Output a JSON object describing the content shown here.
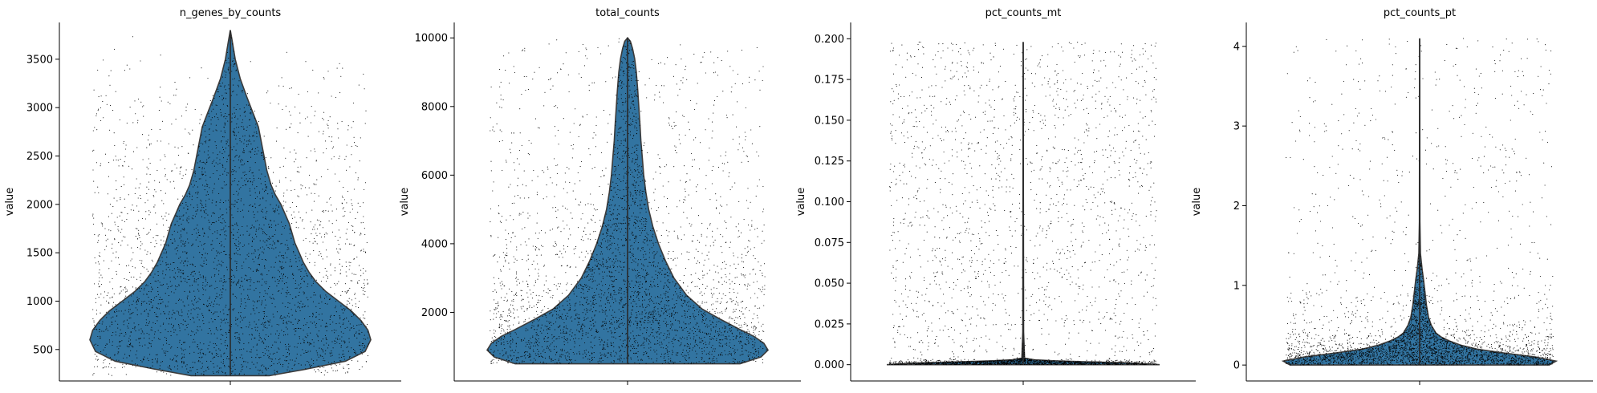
{
  "chart_data": [
    {
      "type": "violin",
      "title": "n_genes_by_counts",
      "xlabel": "",
      "ylabel": "value",
      "ylim": [
        175,
        3880
      ],
      "yticks": [
        500,
        1000,
        1500,
        2000,
        2500,
        3000,
        3500
      ],
      "ytick_labels": [
        "500",
        "1000",
        "1500",
        "2000",
        "2500",
        "3000",
        "3500"
      ],
      "data_min": 230,
      "data_max": 3800,
      "violin_color": "#3274a1",
      "density": [
        {
          "y": 230,
          "w": 0.28
        },
        {
          "y": 300,
          "w": 0.55
        },
        {
          "y": 380,
          "w": 0.82
        },
        {
          "y": 480,
          "w": 0.96
        },
        {
          "y": 600,
          "w": 1.0
        },
        {
          "y": 700,
          "w": 0.98
        },
        {
          "y": 800,
          "w": 0.93
        },
        {
          "y": 900,
          "w": 0.86
        },
        {
          "y": 1000,
          "w": 0.77
        },
        {
          "y": 1100,
          "w": 0.68
        },
        {
          "y": 1200,
          "w": 0.61
        },
        {
          "y": 1300,
          "w": 0.56
        },
        {
          "y": 1400,
          "w": 0.52
        },
        {
          "y": 1500,
          "w": 0.49
        },
        {
          "y": 1600,
          "w": 0.46
        },
        {
          "y": 1700,
          "w": 0.44
        },
        {
          "y": 1800,
          "w": 0.42
        },
        {
          "y": 1900,
          "w": 0.39
        },
        {
          "y": 2000,
          "w": 0.36
        },
        {
          "y": 2100,
          "w": 0.32
        },
        {
          "y": 2200,
          "w": 0.29
        },
        {
          "y": 2350,
          "w": 0.26
        },
        {
          "y": 2500,
          "w": 0.24
        },
        {
          "y": 2650,
          "w": 0.22
        },
        {
          "y": 2800,
          "w": 0.2
        },
        {
          "y": 2950,
          "w": 0.16
        },
        {
          "y": 3100,
          "w": 0.12
        },
        {
          "y": 3300,
          "w": 0.07
        },
        {
          "y": 3500,
          "w": 0.035
        },
        {
          "y": 3700,
          "w": 0.012
        },
        {
          "y": 3800,
          "w": 0.0
        }
      ]
    },
    {
      "type": "violin",
      "title": "total_counts",
      "xlabel": "",
      "ylabel": "value",
      "ylim": [
        0,
        10450
      ],
      "yticks": [
        2000,
        4000,
        6000,
        8000,
        10000
      ],
      "ytick_labels": [
        "2000",
        "4000",
        "6000",
        "8000",
        "10000"
      ],
      "data_min": 500,
      "data_max": 10000,
      "violin_color": "#3274a1",
      "density": [
        {
          "y": 500,
          "w": 0.8
        },
        {
          "y": 700,
          "w": 0.95
        },
        {
          "y": 900,
          "w": 1.0
        },
        {
          "y": 1100,
          "w": 0.97
        },
        {
          "y": 1300,
          "w": 0.9
        },
        {
          "y": 1500,
          "w": 0.8
        },
        {
          "y": 1800,
          "w": 0.66
        },
        {
          "y": 2100,
          "w": 0.53
        },
        {
          "y": 2500,
          "w": 0.42
        },
        {
          "y": 3000,
          "w": 0.33
        },
        {
          "y": 3500,
          "w": 0.27
        },
        {
          "y": 4000,
          "w": 0.22
        },
        {
          "y": 4500,
          "w": 0.18
        },
        {
          "y": 5000,
          "w": 0.15
        },
        {
          "y": 5500,
          "w": 0.13
        },
        {
          "y": 6000,
          "w": 0.115
        },
        {
          "y": 6500,
          "w": 0.105
        },
        {
          "y": 7000,
          "w": 0.095
        },
        {
          "y": 7500,
          "w": 0.088
        },
        {
          "y": 8000,
          "w": 0.08
        },
        {
          "y": 8500,
          "w": 0.072
        },
        {
          "y": 9000,
          "w": 0.062
        },
        {
          "y": 9400,
          "w": 0.05
        },
        {
          "y": 9700,
          "w": 0.035
        },
        {
          "y": 9900,
          "w": 0.02
        },
        {
          "y": 10000,
          "w": 0.0
        }
      ]
    },
    {
      "type": "violin",
      "title": "pct_counts_mt",
      "xlabel": "",
      "ylabel": "value",
      "ylim": [
        -0.01,
        0.21
      ],
      "yticks": [
        0.0,
        0.025,
        0.05,
        0.075,
        0.1,
        0.125,
        0.15,
        0.175,
        0.2
      ],
      "ytick_labels": [
        "0.000",
        "0.025",
        "0.050",
        "0.075",
        "0.100",
        "0.125",
        "0.150",
        "0.175",
        "0.200"
      ],
      "data_min": 0.0,
      "data_max": 0.198,
      "violin_color": "#3274a1",
      "density": [
        {
          "y": 0.0,
          "w": 1.0
        },
        {
          "y": 0.0006,
          "w": 0.9
        },
        {
          "y": 0.0012,
          "w": 0.7
        },
        {
          "y": 0.0018,
          "w": 0.45
        },
        {
          "y": 0.0024,
          "w": 0.22
        },
        {
          "y": 0.003,
          "w": 0.08
        },
        {
          "y": 0.004,
          "w": 0.01
        },
        {
          "y": 0.02,
          "w": 0.003
        },
        {
          "y": 0.198,
          "w": 0.0
        }
      ]
    },
    {
      "type": "violin",
      "title": "pct_counts_pt",
      "xlabel": "",
      "ylabel": "value",
      "ylim": [
        -0.2,
        4.3
      ],
      "yticks": [
        0,
        1,
        2,
        3,
        4
      ],
      "ytick_labels": [
        "0",
        "1",
        "2",
        "3",
        "4"
      ],
      "data_min": 0.0,
      "data_max": 4.1,
      "violin_color": "#3274a1",
      "density": [
        {
          "y": 0.0,
          "w": 0.95
        },
        {
          "y": 0.05,
          "w": 1.0
        },
        {
          "y": 0.1,
          "w": 0.85
        },
        {
          "y": 0.15,
          "w": 0.62
        },
        {
          "y": 0.2,
          "w": 0.42
        },
        {
          "y": 0.25,
          "w": 0.3
        },
        {
          "y": 0.3,
          "w": 0.22
        },
        {
          "y": 0.35,
          "w": 0.16
        },
        {
          "y": 0.4,
          "w": 0.12
        },
        {
          "y": 0.5,
          "w": 0.085
        },
        {
          "y": 0.6,
          "w": 0.065
        },
        {
          "y": 0.75,
          "w": 0.05
        },
        {
          "y": 0.9,
          "w": 0.04
        },
        {
          "y": 1.05,
          "w": 0.03
        },
        {
          "y": 1.2,
          "w": 0.018
        },
        {
          "y": 1.4,
          "w": 0.006
        },
        {
          "y": 1.8,
          "w": 0.002
        },
        {
          "y": 4.1,
          "w": 0.0
        }
      ]
    }
  ]
}
